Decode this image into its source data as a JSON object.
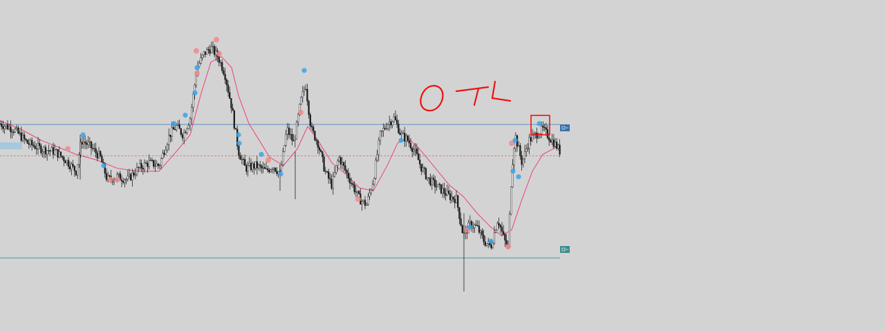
{
  "colors": {
    "background": "#d3d3d3",
    "candle_up": "#ffffff",
    "candle_down": "#1a1a1a",
    "wick": "#222222",
    "moving_average": "#e8417a",
    "resistance_line": "#5a8fc8",
    "support_line": "#4a9a9a",
    "current_price_line": "#e07a5f",
    "blue_marker": "#3aa3e8",
    "red_marker": "#ee8a8a",
    "annotation": "#ee1111"
  },
  "annotation": {
    "text": "OTL",
    "box_shape": "rectangle",
    "color": "#ee1111"
  },
  "chart_data": {
    "type": "candlestick",
    "title": "",
    "xlabel": "",
    "ylabel": "",
    "ylim": [
      0,
      100
    ],
    "grid": false,
    "legend": "none",
    "levels": [
      {
        "name": "",
        "value": 61.7,
        "style": "solid",
        "color": "#5a8fc8",
        "tag": "blue-tag"
      },
      {
        "name": "",
        "value": 50.5,
        "style": "dashed",
        "color": "#e07a5f",
        "tag": "none"
      },
      {
        "name": "",
        "value": 14.0,
        "style": "solid",
        "color": "#4a9a9a",
        "tag": "teal-tag"
      }
    ],
    "price_path": [
      [
        0,
        62
      ],
      [
        20,
        60
      ],
      [
        40,
        55
      ],
      [
        60,
        53
      ],
      [
        80,
        52
      ],
      [
        95,
        49
      ],
      [
        110,
        45
      ],
      [
        118,
        56
      ],
      [
        130,
        54
      ],
      [
        145,
        50
      ],
      [
        155,
        42
      ],
      [
        170,
        43
      ],
      [
        185,
        42
      ],
      [
        200,
        46
      ],
      [
        215,
        48
      ],
      [
        230,
        47
      ],
      [
        245,
        58
      ],
      [
        255,
        61
      ],
      [
        265,
        58
      ],
      [
        275,
        64
      ],
      [
        285,
        82
      ],
      [
        295,
        87
      ],
      [
        305,
        89
      ],
      [
        315,
        86
      ],
      [
        325,
        80
      ],
      [
        335,
        68
      ],
      [
        345,
        52
      ],
      [
        355,
        46
      ],
      [
        370,
        47
      ],
      [
        385,
        45
      ],
      [
        395,
        47
      ],
      [
        405,
        44
      ],
      [
        415,
        60
      ],
      [
        425,
        55
      ],
      [
        435,
        70
      ],
      [
        442,
        76
      ],
      [
        450,
        60
      ],
      [
        460,
        55
      ],
      [
        470,
        45
      ],
      [
        480,
        40
      ],
      [
        490,
        50
      ],
      [
        500,
        45
      ],
      [
        510,
        40
      ],
      [
        520,
        35
      ],
      [
        530,
        33
      ],
      [
        540,
        42
      ],
      [
        550,
        58
      ],
      [
        560,
        62
      ],
      [
        570,
        64
      ],
      [
        580,
        58
      ],
      [
        590,
        56
      ],
      [
        600,
        52
      ],
      [
        610,
        46
      ],
      [
        620,
        42
      ],
      [
        630,
        40
      ],
      [
        640,
        38
      ],
      [
        650,
        36
      ],
      [
        660,
        35
      ],
      [
        670,
        22
      ],
      [
        680,
        26
      ],
      [
        690,
        25
      ],
      [
        700,
        20
      ],
      [
        710,
        18
      ],
      [
        720,
        28
      ],
      [
        730,
        20
      ],
      [
        735,
        18
      ],
      [
        740,
        45
      ],
      [
        745,
        58
      ],
      [
        755,
        48
      ],
      [
        765,
        56
      ],
      [
        775,
        58
      ],
      [
        785,
        60
      ],
      [
        795,
        57
      ],
      [
        805,
        54
      ],
      [
        810,
        52
      ]
    ],
    "moving_average_path": [
      [
        0,
        63
      ],
      [
        30,
        60
      ],
      [
        60,
        56
      ],
      [
        90,
        53
      ],
      [
        110,
        51
      ],
      [
        140,
        49
      ],
      [
        170,
        46
      ],
      [
        200,
        45
      ],
      [
        230,
        45
      ],
      [
        255,
        52
      ],
      [
        275,
        58
      ],
      [
        290,
        72
      ],
      [
        305,
        84
      ],
      [
        320,
        86
      ],
      [
        335,
        82
      ],
      [
        345,
        72
      ],
      [
        360,
        62
      ],
      [
        375,
        56
      ],
      [
        390,
        50
      ],
      [
        410,
        47
      ],
      [
        430,
        53
      ],
      [
        445,
        61
      ],
      [
        460,
        56
      ],
      [
        480,
        48
      ],
      [
        500,
        44
      ],
      [
        520,
        39
      ],
      [
        540,
        38
      ],
      [
        560,
        47
      ],
      [
        575,
        55
      ],
      [
        590,
        57
      ],
      [
        610,
        52
      ],
      [
        630,
        46
      ],
      [
        650,
        40
      ],
      [
        670,
        36
      ],
      [
        690,
        30
      ],
      [
        710,
        25
      ],
      [
        725,
        22
      ],
      [
        740,
        24
      ],
      [
        755,
        35
      ],
      [
        770,
        45
      ],
      [
        785,
        51
      ],
      [
        800,
        53
      ],
      [
        810,
        54
      ]
    ],
    "blue_markers": [
      [
        120,
        58
      ],
      [
        150,
        47
      ],
      [
        252,
        62
      ],
      [
        268,
        65
      ],
      [
        282,
        73
      ],
      [
        285,
        82
      ],
      [
        440,
        81
      ],
      [
        346,
        55
      ],
      [
        345,
        58
      ],
      [
        378,
        51
      ],
      [
        406,
        44
      ],
      [
        580,
        56
      ],
      [
        680,
        25
      ],
      [
        710,
        20
      ],
      [
        745,
        56
      ],
      [
        742,
        45
      ],
      [
        750,
        43
      ],
      [
        780,
        62
      ]
    ],
    "red_markers": [
      [
        98,
        53
      ],
      [
        160,
        42
      ],
      [
        170,
        42
      ],
      [
        284,
        88
      ],
      [
        285,
        80
      ],
      [
        317,
        87
      ],
      [
        313,
        92
      ],
      [
        388,
        49
      ],
      [
        435,
        66
      ],
      [
        518,
        35
      ],
      [
        676,
        24
      ],
      [
        735,
        18
      ],
      [
        740,
        55
      ]
    ]
  }
}
